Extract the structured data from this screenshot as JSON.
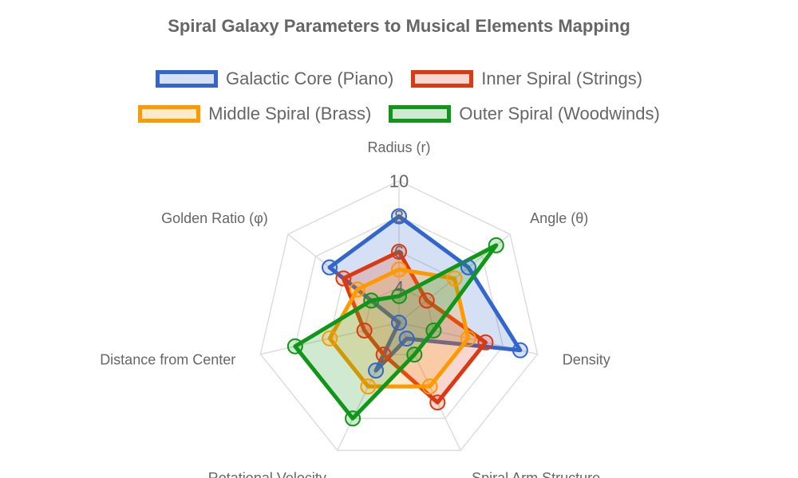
{
  "chart_data": {
    "type": "radar",
    "title": "Spiral Galaxy Parameters to Musical Elements Mapping",
    "axes": [
      "Radius (r)",
      "Angle (θ)",
      "Density",
      "Spiral Arm Structure",
      "Rotational Velocity",
      "Distance from Center",
      "Golden Ratio (φ)"
    ],
    "scale": {
      "min": 2,
      "max": 10,
      "ticks": [
        4,
        6,
        8,
        10
      ]
    },
    "grid": true,
    "legend_position": "top",
    "series": [
      {
        "name": "Galactic Core (Piano)",
        "color": "#3366cc",
        "fill": "rgba(51,102,204,0.2)",
        "values": [
          8,
          7,
          9,
          3,
          5,
          2,
          7
        ]
      },
      {
        "name": "Inner Spiral (Strings)",
        "color": "#dc3912",
        "fill": "rgba(220,57,18,0.2)",
        "values": [
          6,
          4,
          7,
          7,
          4,
          4,
          6
        ]
      },
      {
        "name": "Middle Spiral (Brass)",
        "color": "#ff9900",
        "fill": "rgba(255,153,0,0.2)",
        "values": [
          5,
          6,
          6,
          6,
          6,
          6,
          5
        ]
      },
      {
        "name": "Outer Spiral (Woodwinds)",
        "color": "#109618",
        "fill": "rgba(16,150,24,0.2)",
        "values": [
          3.5,
          9,
          4,
          4,
          8,
          8,
          4
        ]
      }
    ]
  }
}
